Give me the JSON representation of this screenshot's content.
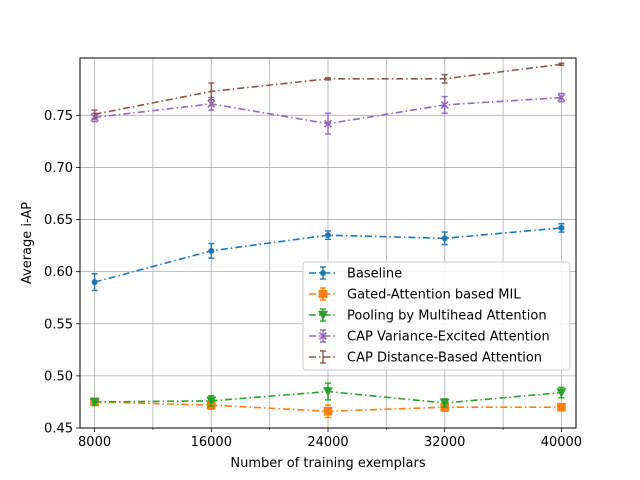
{
  "chart_data": {
    "type": "line",
    "title": "",
    "xlabel": "Number of training exemplars",
    "ylabel": "Average i-AP",
    "x": [
      8000,
      16000,
      24000,
      32000,
      40000
    ],
    "xticks": [
      8000,
      16000,
      24000,
      32000,
      40000
    ],
    "xtick_labels": [
      "8000",
      "16000",
      "24000",
      "32000",
      "40000"
    ],
    "x_minor_grid": [
      12000,
      20000,
      28000,
      36000
    ],
    "yticks": [
      0.45,
      0.5,
      0.55,
      0.6,
      0.65,
      0.7,
      0.75
    ],
    "ytick_labels": [
      "0.45",
      "0.50",
      "0.55",
      "0.60",
      "0.65",
      "0.70",
      "0.75"
    ],
    "xlim": [
      7000,
      41000
    ],
    "ylim": [
      0.45,
      0.805
    ],
    "grid": true,
    "legend_position": "center-right",
    "series": [
      {
        "name": "Baseline",
        "color": "#1f77b4",
        "marker": "circle",
        "values": [
          0.59,
          0.62,
          0.635,
          0.632,
          0.642
        ],
        "errors": [
          0.008,
          0.007,
          0.004,
          0.006,
          0.004
        ]
      },
      {
        "name": "Gated-Attention based MIL",
        "color": "#ff7f0e",
        "marker": "square",
        "values": [
          0.475,
          0.472,
          0.466,
          0.47,
          0.47
        ],
        "errors": [
          0.003,
          0.004,
          0.006,
          0.004,
          0.003
        ]
      },
      {
        "name": "Pooling by Multihead Attention",
        "color": "#2ca02c",
        "marker": "triangle-down",
        "values": [
          0.475,
          0.476,
          0.485,
          0.474,
          0.484
        ],
        "errors": [
          0.003,
          0.005,
          0.008,
          0.004,
          0.005
        ]
      },
      {
        "name": "CAP Variance-Excited Attention",
        "color": "#9467bd",
        "marker": "x",
        "values": [
          0.748,
          0.761,
          0.742,
          0.76,
          0.767
        ],
        "errors": [
          0.004,
          0.006,
          0.01,
          0.008,
          0.004
        ]
      },
      {
        "name": "CAP Distance-Based Attention",
        "color": "#8c564b",
        "marker": "none",
        "values": [
          0.751,
          0.773,
          0.785,
          0.785,
          0.799
        ],
        "errors": [
          0.004,
          0.008,
          0.001,
          0.004,
          0.001
        ]
      }
    ]
  }
}
